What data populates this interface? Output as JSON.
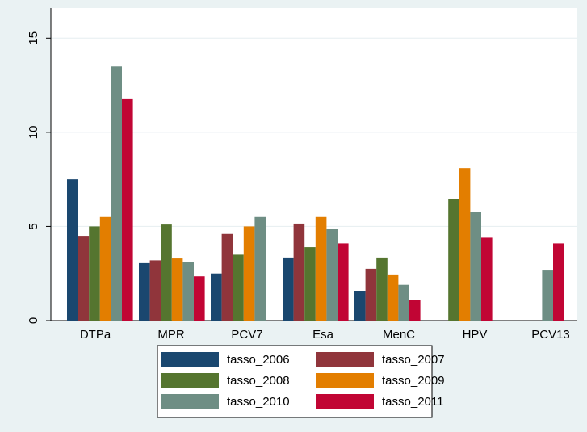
{
  "chart_data": {
    "type": "bar",
    "categories": [
      "DTPa",
      "MPR",
      "PCV7",
      "Esa",
      "MenC",
      "HPV",
      "PCV13"
    ],
    "series": [
      {
        "name": "tasso_2006",
        "color": "#1a476f",
        "values": [
          7.5,
          3.05,
          2.5,
          3.35,
          1.55,
          null,
          null
        ]
      },
      {
        "name": "tasso_2007",
        "color": "#90353b",
        "values": [
          4.5,
          3.2,
          4.6,
          5.15,
          2.75,
          null,
          null
        ]
      },
      {
        "name": "tasso_2008",
        "color": "#55752f",
        "values": [
          5.0,
          5.1,
          3.5,
          3.9,
          3.35,
          6.45,
          null
        ]
      },
      {
        "name": "tasso_2009",
        "color": "#e37e00",
        "values": [
          5.5,
          3.3,
          5.0,
          5.5,
          2.45,
          8.1,
          null
        ]
      },
      {
        "name": "tasso_2010",
        "color": "#6e8e84",
        "values": [
          13.5,
          3.1,
          5.5,
          4.85,
          1.9,
          5.75,
          2.7
        ]
      },
      {
        "name": "tasso_2011",
        "color": "#c10534",
        "values": [
          11.8,
          2.35,
          null,
          4.1,
          1.1,
          4.4,
          4.1
        ]
      }
    ],
    "ylim": [
      0,
      16.6
    ],
    "yticks": [
      0,
      5,
      10,
      15
    ],
    "grid": true,
    "legend": "bottom"
  }
}
